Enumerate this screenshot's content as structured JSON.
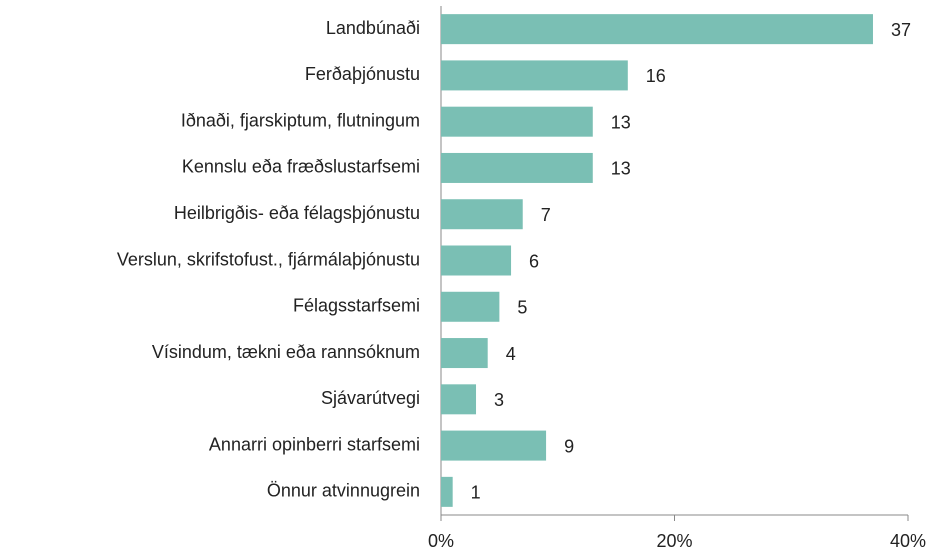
{
  "chart_data": {
    "type": "hbar",
    "categories": [
      "Landbúnaði",
      "Ferðaþjónustu",
      "Iðnaði, fjarskiptum, flutningum",
      "Kennslu eða fræðslustarfsemi",
      "Heilbrigðis- eða félagsþjónustu",
      "Verslun, skrifstofust., fjármálaþjónustu",
      "Félagsstarfsemi",
      "Vísindum, tækni eða rannsóknum",
      "Sjávarútvegi",
      "Annarri opinberri starfsemi",
      "Önnur atvinnugrein"
    ],
    "values": [
      37,
      16,
      13,
      13,
      7,
      6,
      5,
      4,
      3,
      9,
      1
    ],
    "color": "#7abfb4",
    "xlim": [
      0,
      40
    ],
    "xticks": [
      {
        "value": 0,
        "label": "0%"
      },
      {
        "value": 20,
        "label": "20%"
      },
      {
        "value": 40,
        "label": "40%"
      }
    ]
  }
}
